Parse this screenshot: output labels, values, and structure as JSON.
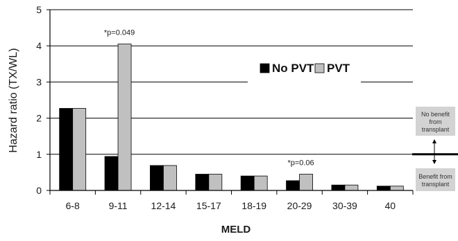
{
  "chart_data": {
    "type": "bar",
    "ylabel": "Hazard ratio (TX/WL)",
    "xlabel": "MELD",
    "ylim": [
      0,
      5
    ],
    "yticks": [
      0,
      1,
      2,
      3,
      4,
      5
    ],
    "grid": true,
    "legend_position": "upper-right",
    "categories": [
      "6-8",
      "9-11",
      "12-14",
      "15-17",
      "18-19",
      "20-29",
      "30-39",
      "40"
    ],
    "series": [
      {
        "name": "No PVT",
        "color": "#000000",
        "values": [
          2.27,
          0.94,
          0.69,
          0.45,
          0.4,
          0.27,
          0.15,
          0.12
        ]
      },
      {
        "name": "PVT",
        "color": "#c0c0c0",
        "values": [
          2.27,
          4.05,
          0.69,
          0.45,
          0.4,
          0.45,
          0.15,
          0.12
        ]
      }
    ],
    "annotations": [
      {
        "text": "*p=0.049",
        "category": "9-11"
      },
      {
        "text": "*p=0.06",
        "category": "20-29"
      }
    ],
    "reference_line": {
      "value": 1,
      "label_above": "No benefit from transplant",
      "label_below": "Benefit from transplant"
    }
  }
}
